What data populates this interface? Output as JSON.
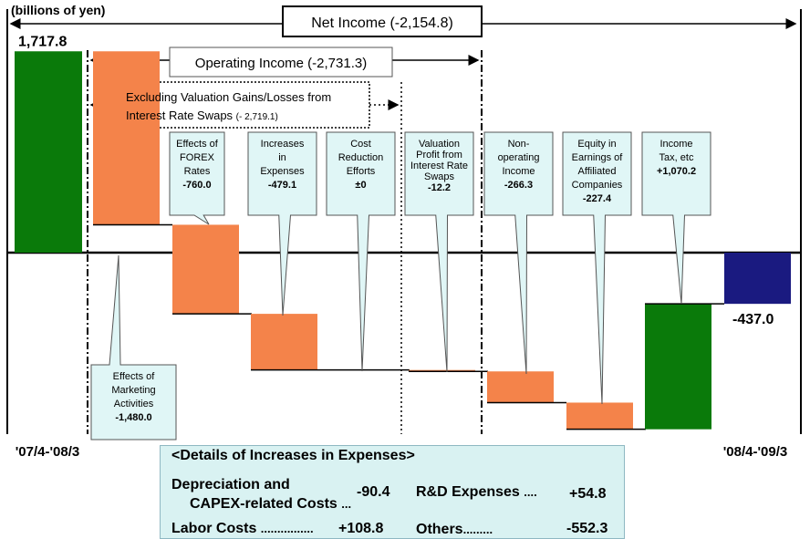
{
  "chart_data": {
    "type": "waterfall",
    "unit_label": "(billions of yen)",
    "start": {
      "label": "'07/4-'08/3",
      "value": 1717.8,
      "value_label": "1,717.8",
      "color": "#0a7a0a"
    },
    "end": {
      "label": "'08/4-'09/3",
      "value": -437.0,
      "value_label": "-437.0",
      "color": "#1a1a80"
    },
    "steps": [
      {
        "name": "Effects of Marketing Activities",
        "lines": [
          "Effects of",
          "Marketing",
          "Activities"
        ],
        "value_label": "-1,480.0",
        "value": -1480.0,
        "color": "#f4834a"
      },
      {
        "name": "Effects of FOREX Rates",
        "lines": [
          "Effects of",
          "FOREX",
          "Rates"
        ],
        "value_label": "-760.0",
        "value": -760.0,
        "color": "#f4834a"
      },
      {
        "name": "Increases in Expenses",
        "lines": [
          "Increases",
          "in",
          "Expenses"
        ],
        "value_label": "-479.1",
        "value": -479.1,
        "color": "#f4834a"
      },
      {
        "name": "Cost Reduction Efforts",
        "lines": [
          "Cost",
          "Reduction",
          "Efforts"
        ],
        "value_label": "±0",
        "value": 0,
        "color": "#f4834a"
      },
      {
        "name": "Valuation Profit from Interest Rate Swaps",
        "lines": [
          "Valuation",
          "Profit from",
          "Interest Rate",
          "Swaps"
        ],
        "value_label": "-12.2",
        "value": -12.2,
        "color": "#f4834a"
      },
      {
        "name": "Non-operating Income",
        "lines": [
          "Non-",
          "operating",
          "Income"
        ],
        "value_label": "-266.3",
        "value": -266.3,
        "color": "#f4834a"
      },
      {
        "name": "Equity in Earnings of Affiliated Companies",
        "lines": [
          "Equity in",
          "Earnings of",
          "Affiliated",
          "Companies"
        ],
        "value_label": "-227.4",
        "value": -227.4,
        "color": "#f4834a"
      },
      {
        "name": "Income Tax, etc",
        "lines": [
          "Income",
          "Tax, etc"
        ],
        "value_label": "+1,070.2",
        "value": 1070.2,
        "color": "#0a7a0a"
      }
    ],
    "brackets": {
      "net_income": "Net Income (-2,154.8)",
      "operating_income": "Operating Income (-2,731.3)",
      "excluding_line1": "Excluding Valuation Gains/Losses from",
      "excluding_line2": "Interest Rate Swaps",
      "excluding_value": "(- 2,719.1)"
    }
  },
  "details": {
    "title": "<Details of Increases in Expenses>",
    "depreciation_label_1": "Depreciation and",
    "depreciation_label_2": "CAPEX-related Costs",
    "depreciation_dots": "...",
    "depreciation_value": "-90.4",
    "labor_label": "Labor Costs",
    "labor_dots": "................",
    "labor_value": "+108.8",
    "rd_label": "R&D Expenses",
    "rd_dots": "....",
    "rd_value": "+54.8",
    "others_label": "Others",
    "others_dots": ".........",
    "others_value": "-552.3"
  }
}
